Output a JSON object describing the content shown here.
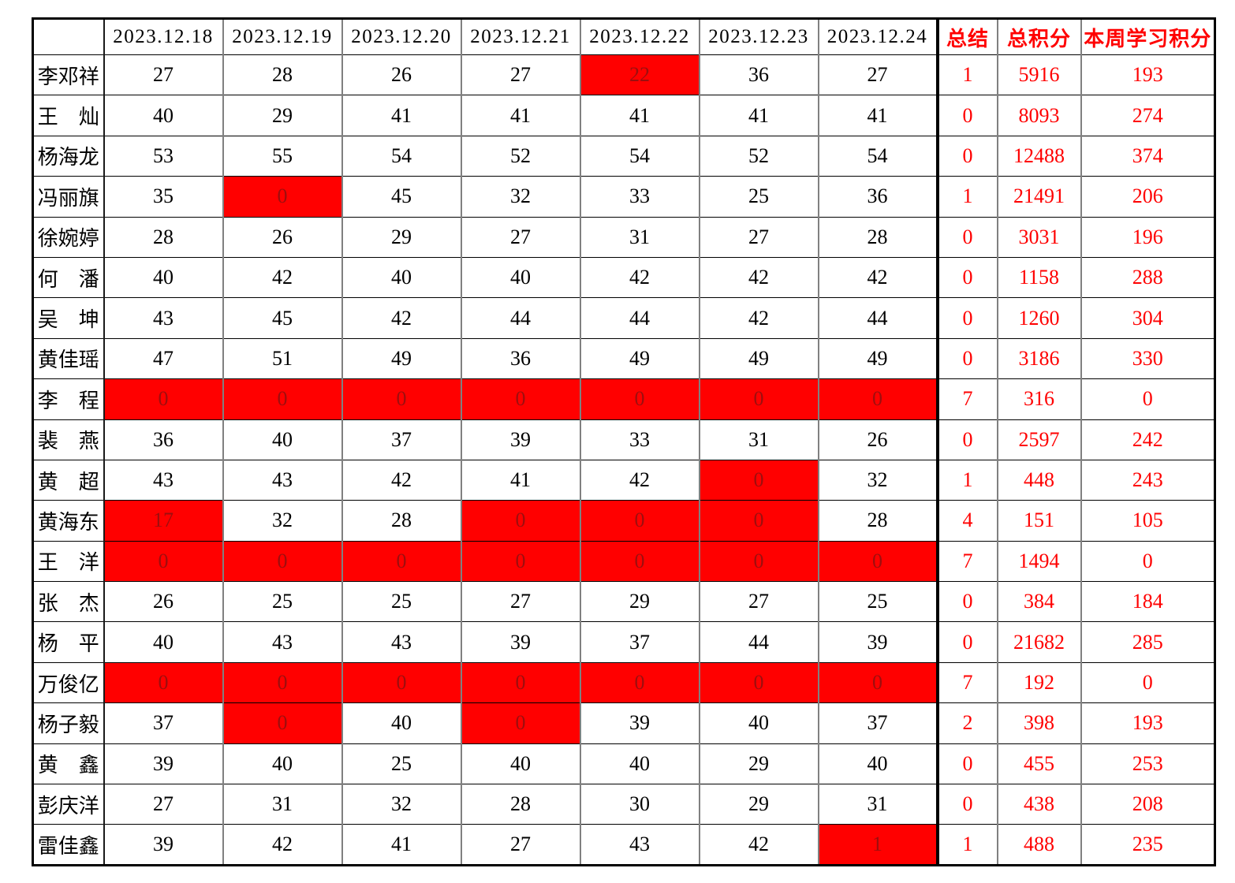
{
  "colors": {
    "highlight_bg": "#ff0000",
    "highlight_text": "#9e0e0e",
    "accent_text": "#ff0000",
    "grid_line_vertical": "#808080",
    "grid_line_horizontal": "#000000",
    "body_text": "#000000",
    "outer_border": "#000000"
  },
  "table": {
    "columns": [
      "",
      "2023.12.18",
      "2023.12.19",
      "2023.12.20",
      "2023.12.21",
      "2023.12.22",
      "2023.12.23",
      "2023.12.24",
      "总结",
      "总积分",
      "本周学习积分"
    ],
    "rows": [
      {
        "name": "李邓祥",
        "days": [
          27,
          28,
          26,
          27,
          22,
          36,
          27
        ],
        "red_days": [
          4
        ],
        "summary": 1,
        "total": 5916,
        "week": 193
      },
      {
        "name": "王　灿",
        "days": [
          40,
          29,
          41,
          41,
          41,
          41,
          41
        ],
        "red_days": [],
        "summary": 0,
        "total": 8093,
        "week": 274
      },
      {
        "name": "杨海龙",
        "days": [
          53,
          55,
          54,
          52,
          54,
          52,
          54
        ],
        "red_days": [],
        "summary": 0,
        "total": 12488,
        "week": 374
      },
      {
        "name": "冯丽旗",
        "days": [
          35,
          0,
          45,
          32,
          33,
          25,
          36
        ],
        "red_days": [
          1
        ],
        "summary": 1,
        "total": 21491,
        "week": 206
      },
      {
        "name": "徐婉婷",
        "days": [
          28,
          26,
          29,
          27,
          31,
          27,
          28
        ],
        "red_days": [],
        "summary": 0,
        "total": 3031,
        "week": 196
      },
      {
        "name": "何　潘",
        "days": [
          40,
          42,
          40,
          40,
          42,
          42,
          42
        ],
        "red_days": [],
        "summary": 0,
        "total": 1158,
        "week": 288
      },
      {
        "name": "吴　坤",
        "days": [
          43,
          45,
          42,
          44,
          44,
          42,
          44
        ],
        "red_days": [],
        "summary": 0,
        "total": 1260,
        "week": 304
      },
      {
        "name": "黄佳瑶",
        "days": [
          47,
          51,
          49,
          36,
          49,
          49,
          49
        ],
        "red_days": [],
        "summary": 0,
        "total": 3186,
        "week": 330
      },
      {
        "name": "李　程",
        "days": [
          0,
          0,
          0,
          0,
          0,
          0,
          0
        ],
        "red_days": [
          0,
          1,
          2,
          3,
          4,
          5,
          6
        ],
        "summary": 7,
        "total": 316,
        "week": 0
      },
      {
        "name": "裴　燕",
        "days": [
          36,
          40,
          37,
          39,
          33,
          31,
          26
        ],
        "red_days": [],
        "summary": 0,
        "total": 2597,
        "week": 242
      },
      {
        "name": "黄　超",
        "days": [
          43,
          43,
          42,
          41,
          42,
          0,
          32
        ],
        "red_days": [
          5
        ],
        "summary": 1,
        "total": 448,
        "week": 243
      },
      {
        "name": "黄海东",
        "days": [
          17,
          32,
          28,
          0,
          0,
          0,
          28
        ],
        "red_days": [
          0,
          3,
          4,
          5
        ],
        "summary": 4,
        "total": 151,
        "week": 105
      },
      {
        "name": "王　洋",
        "days": [
          0,
          0,
          0,
          0,
          0,
          0,
          0
        ],
        "red_days": [
          0,
          1,
          2,
          3,
          4,
          5,
          6
        ],
        "summary": 7,
        "total": 1494,
        "week": 0
      },
      {
        "name": "张　杰",
        "days": [
          26,
          25,
          25,
          27,
          29,
          27,
          25
        ],
        "red_days": [],
        "summary": 0,
        "total": 384,
        "week": 184
      },
      {
        "name": "杨　平",
        "days": [
          40,
          43,
          43,
          39,
          37,
          44,
          39
        ],
        "red_days": [],
        "summary": 0,
        "total": 21682,
        "week": 285
      },
      {
        "name": "万俊亿",
        "days": [
          0,
          0,
          0,
          0,
          0,
          0,
          0
        ],
        "red_days": [
          0,
          1,
          2,
          3,
          4,
          5,
          6
        ],
        "summary": 7,
        "total": 192,
        "week": 0
      },
      {
        "name": "杨子毅",
        "days": [
          37,
          0,
          40,
          0,
          39,
          40,
          37
        ],
        "red_days": [
          1,
          3
        ],
        "summary": 2,
        "total": 398,
        "week": 193
      },
      {
        "name": "黄　鑫",
        "days": [
          39,
          40,
          25,
          40,
          40,
          29,
          40
        ],
        "red_days": [],
        "summary": 0,
        "total": 455,
        "week": 253
      },
      {
        "name": "彭庆洋",
        "days": [
          27,
          31,
          32,
          28,
          30,
          29,
          31
        ],
        "red_days": [],
        "summary": 0,
        "total": 438,
        "week": 208
      },
      {
        "name": "雷佳鑫",
        "days": [
          39,
          42,
          41,
          27,
          43,
          42,
          1
        ],
        "red_days": [
          6
        ],
        "summary": 1,
        "total": 488,
        "week": 235
      }
    ]
  }
}
